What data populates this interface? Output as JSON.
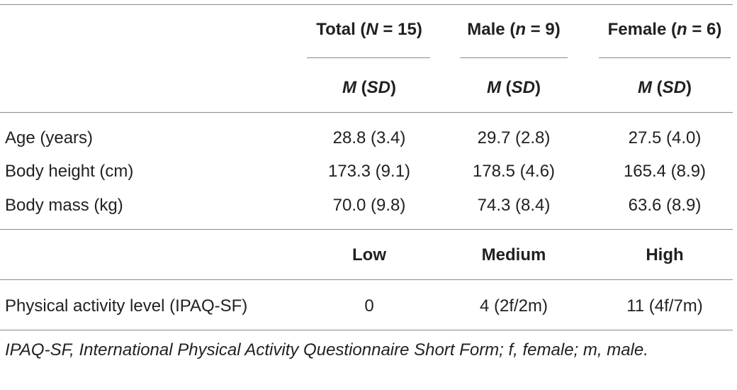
{
  "table": {
    "group_headers": [
      {
        "label": "Total",
        "n_label": "N",
        "n_value": "= 15"
      },
      {
        "label": "Male",
        "n_label": "n",
        "n_value": "= 9"
      },
      {
        "label": "Female",
        "n_label": "n",
        "n_value": "= 6"
      }
    ],
    "stat_header": {
      "m": "M",
      "sd": "SD"
    },
    "rows": [
      {
        "label": "Age (years)",
        "values": [
          "28.8 (3.4)",
          "29.7 (2.8)",
          "27.5 (4.0)"
        ]
      },
      {
        "label": "Body height (cm)",
        "values": [
          "173.3 (9.1)",
          "178.5 (4.6)",
          "165.4 (8.9)"
        ]
      },
      {
        "label": "Body mass (kg)",
        "values": [
          "70.0 (9.8)",
          "74.3 (8.4)",
          "63.6 (8.9)"
        ]
      }
    ],
    "activity_headers": [
      "Low",
      "Medium",
      "High"
    ],
    "activity_row": {
      "label": "Physical activity level (IPAQ-SF)",
      "values": [
        "0",
        "4 (2f/2m)",
        "11 (4f/7m)"
      ]
    },
    "footnote": "IPAQ-SF, International Physical Activity Questionnaire Short Form; f, female; m, male."
  }
}
